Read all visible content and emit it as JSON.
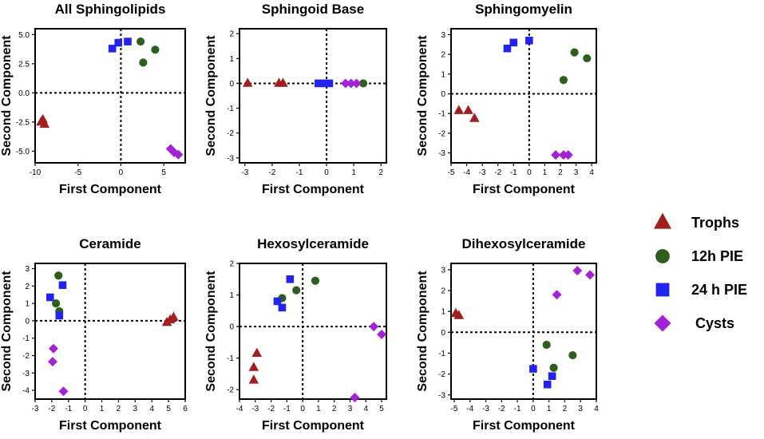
{
  "colors": {
    "Trophs": "#a31f1f",
    "12h PIE": "#2d5e1e",
    "24 h PIE": "#2323f0",
    "Cysts": "#a421d6"
  },
  "legend": {
    "position": "right",
    "items": [
      {
        "label": "Trophs",
        "marker": "triangle"
      },
      {
        "label": "12h PIE",
        "marker": "circle"
      },
      {
        "label": "24 h PIE",
        "marker": "square"
      },
      {
        "label": "Cysts",
        "marker": "diamond"
      }
    ]
  },
  "chart_data": [
    {
      "type": "scatter",
      "title": "All Sphingolipids",
      "xlabel": "First Component",
      "ylabel": "Second Component",
      "xlim": [
        -10,
        7.5
      ],
      "ylim": [
        -6,
        5.5
      ],
      "xticks": [
        -10,
        -5,
        0,
        5
      ],
      "xtick_labels": [
        "-10",
        "-5",
        "0",
        "5"
      ],
      "yticks": [
        5,
        2.5,
        0,
        -2.5,
        -5
      ],
      "ytick_labels": [
        "5.0",
        "2.5",
        "0.0",
        "-2.5",
        "-5.0"
      ],
      "series": [
        {
          "name": "Trophs",
          "points": [
            [
              -9.3,
              -2.5
            ],
            [
              -8.9,
              -2.7
            ],
            [
              -9.1,
              -2.3
            ]
          ]
        },
        {
          "name": "12h PIE",
          "points": [
            [
              2.3,
              4.4
            ],
            [
              4.0,
              3.7
            ],
            [
              2.6,
              2.6
            ]
          ]
        },
        {
          "name": "24 h PIE",
          "points": [
            [
              -1.0,
              3.8
            ],
            [
              -0.3,
              4.3
            ],
            [
              0.8,
              4.4
            ]
          ]
        },
        {
          "name": "Cysts",
          "points": [
            [
              5.8,
              -4.8
            ],
            [
              6.2,
              -5.1
            ],
            [
              6.7,
              -5.3
            ]
          ]
        }
      ]
    },
    {
      "type": "scatter",
      "title": "Sphingoid Base",
      "xlabel": "First Component",
      "ylabel": "Second Component",
      "xlim": [
        -3.2,
        2.2
      ],
      "ylim": [
        -3.2,
        2.2
      ],
      "xticks": [
        -3,
        -2,
        -1,
        0,
        1,
        2
      ],
      "xtick_labels": [
        "-3",
        "-2",
        "-1",
        "0",
        "1",
        "2"
      ],
      "yticks": [
        2,
        1,
        0,
        -1,
        -2,
        -3
      ],
      "ytick_labels": [
        "2",
        "1",
        "0",
        "-1",
        "-2",
        "-3"
      ],
      "series": [
        {
          "name": "Trophs",
          "points": [
            [
              -2.9,
              0.0
            ],
            [
              -1.75,
              0.0
            ],
            [
              -1.6,
              0.0
            ]
          ]
        },
        {
          "name": "12h PIE",
          "points": [
            [
              1.35,
              0.0
            ]
          ]
        },
        {
          "name": "24 h PIE",
          "points": [
            [
              -0.3,
              0.0
            ],
            [
              -0.1,
              0.0
            ],
            [
              0.1,
              0.0
            ]
          ]
        },
        {
          "name": "Cysts",
          "points": [
            [
              0.7,
              0.0
            ],
            [
              0.9,
              0.0
            ],
            [
              1.1,
              0.0
            ]
          ]
        }
      ]
    },
    {
      "type": "scatter",
      "title": "Sphingomyelin",
      "xlabel": "First Component",
      "ylabel": "Second Component",
      "xlim": [
        -5,
        4.3
      ],
      "ylim": [
        -3.5,
        3.3
      ],
      "xticks": [
        -5,
        -4,
        -3,
        -2,
        -1,
        0,
        1,
        2,
        3,
        4
      ],
      "xtick_labels": [
        "-5",
        "-4",
        "-3",
        "-2",
        "-1",
        "0",
        "1",
        "2",
        "3",
        "4"
      ],
      "yticks": [
        3,
        2,
        1,
        0,
        -1,
        -2,
        -3
      ],
      "ytick_labels": [
        "3",
        "2",
        "1",
        "0",
        "-1",
        "-2",
        "-3"
      ],
      "series": [
        {
          "name": "Trophs",
          "points": [
            [
              -4.5,
              -0.85
            ],
            [
              -3.9,
              -0.85
            ],
            [
              -3.5,
              -1.25
            ]
          ]
        },
        {
          "name": "12h PIE",
          "points": [
            [
              2.9,
              2.1
            ],
            [
              3.7,
              1.8
            ],
            [
              2.2,
              0.7
            ]
          ]
        },
        {
          "name": "24 h PIE",
          "points": [
            [
              -1.4,
              2.3
            ],
            [
              -1.0,
              2.6
            ],
            [
              0.0,
              2.7
            ]
          ]
        },
        {
          "name": "Cysts",
          "points": [
            [
              1.7,
              -3.1
            ],
            [
              2.2,
              -3.1
            ],
            [
              2.5,
              -3.1
            ]
          ]
        }
      ]
    },
    {
      "type": "scatter",
      "title": "Ceramide",
      "xlabel": "First Component",
      "ylabel": "Second Component",
      "xlim": [
        -3,
        6
      ],
      "ylim": [
        -4.5,
        3.3
      ],
      "xticks": [
        -3,
        -2,
        -1,
        0,
        1,
        2,
        3,
        4,
        5,
        6
      ],
      "xtick_labels": [
        "-3",
        "-2",
        "-1",
        "0",
        "1",
        "2",
        "3",
        "4",
        "5",
        "6"
      ],
      "yticks": [
        3,
        2,
        1,
        0,
        -1,
        -2,
        -3,
        -4
      ],
      "ytick_labels": [
        "3",
        "2",
        "1",
        "0",
        "-1",
        "-2",
        "-3",
        "-4"
      ],
      "series": [
        {
          "name": "Trophs",
          "points": [
            [
              4.9,
              -0.1
            ],
            [
              5.1,
              0.05
            ],
            [
              5.3,
              0.2
            ]
          ]
        },
        {
          "name": "12h PIE",
          "points": [
            [
              -1.6,
              2.6
            ],
            [
              -1.75,
              1.0
            ],
            [
              -1.55,
              0.55
            ]
          ]
        },
        {
          "name": "24 h PIE",
          "points": [
            [
              -2.1,
              1.35
            ],
            [
              -1.35,
              2.05
            ],
            [
              -1.55,
              0.3
            ]
          ]
        },
        {
          "name": "Cysts",
          "points": [
            [
              -1.9,
              -1.6
            ],
            [
              -1.95,
              -2.35
            ],
            [
              -1.3,
              -4.05
            ]
          ]
        }
      ]
    },
    {
      "type": "scatter",
      "title": "Hexosylceramide",
      "xlabel": "First Component",
      "ylabel": "Second Component",
      "xlim": [
        -4,
        5.3
      ],
      "ylim": [
        -2.3,
        2
      ],
      "xticks": [
        -4,
        -3,
        -2,
        -1,
        0,
        1,
        2,
        3,
        4,
        5
      ],
      "xtick_labels": [
        "-4",
        "-3",
        "-2",
        "-1",
        "0",
        "1",
        "2",
        "3",
        "4",
        "5"
      ],
      "yticks": [
        2,
        1,
        0,
        -1,
        -2
      ],
      "ytick_labels": [
        "2",
        "1",
        "0",
        "-1",
        "-2"
      ],
      "series": [
        {
          "name": "Trophs",
          "points": [
            [
              -2.9,
              -0.85
            ],
            [
              -3.1,
              -1.3
            ],
            [
              -3.1,
              -1.7
            ]
          ]
        },
        {
          "name": "12h PIE",
          "points": [
            [
              -1.3,
              0.9
            ],
            [
              -0.4,
              1.15
            ],
            [
              0.8,
              1.45
            ]
          ]
        },
        {
          "name": "24 h PIE",
          "points": [
            [
              -0.8,
              1.5
            ],
            [
              -1.6,
              0.8
            ],
            [
              -1.3,
              0.6
            ]
          ]
        },
        {
          "name": "Cysts",
          "points": [
            [
              4.5,
              0.0
            ],
            [
              5.0,
              -0.25
            ],
            [
              3.3,
              -2.25
            ]
          ]
        }
      ]
    },
    {
      "type": "scatter",
      "title": "Dihexosylceramide",
      "xlabel": "First Component",
      "ylabel": "Second Component",
      "xlim": [
        -5.2,
        4
      ],
      "ylim": [
        -3.2,
        3.3
      ],
      "xticks": [
        -5,
        -4,
        -3,
        -2,
        -1,
        0,
        1,
        2,
        3,
        4
      ],
      "xtick_labels": [
        "-5",
        "-4",
        "-3",
        "-2",
        "-1",
        "0",
        "1",
        "2",
        "3",
        "4"
      ],
      "yticks": [
        3,
        2,
        1,
        0,
        -1,
        -2,
        -3
      ],
      "ytick_labels": [
        "3",
        "2",
        "1",
        "0",
        "-1",
        "-2",
        "-3"
      ],
      "series": [
        {
          "name": "Trophs",
          "points": [
            [
              -4.9,
              0.9
            ],
            [
              -4.7,
              0.8
            ]
          ]
        },
        {
          "name": "12h PIE",
          "points": [
            [
              0.85,
              -0.6
            ],
            [
              1.3,
              -1.7
            ],
            [
              2.5,
              -1.1
            ]
          ]
        },
        {
          "name": "24 h PIE",
          "points": [
            [
              0.0,
              -1.75
            ],
            [
              1.2,
              -2.1
            ],
            [
              0.9,
              -2.5
            ]
          ]
        },
        {
          "name": "Cysts",
          "points": [
            [
              1.5,
              1.8
            ],
            [
              2.8,
              2.95
            ],
            [
              3.6,
              2.75
            ]
          ]
        }
      ]
    }
  ]
}
